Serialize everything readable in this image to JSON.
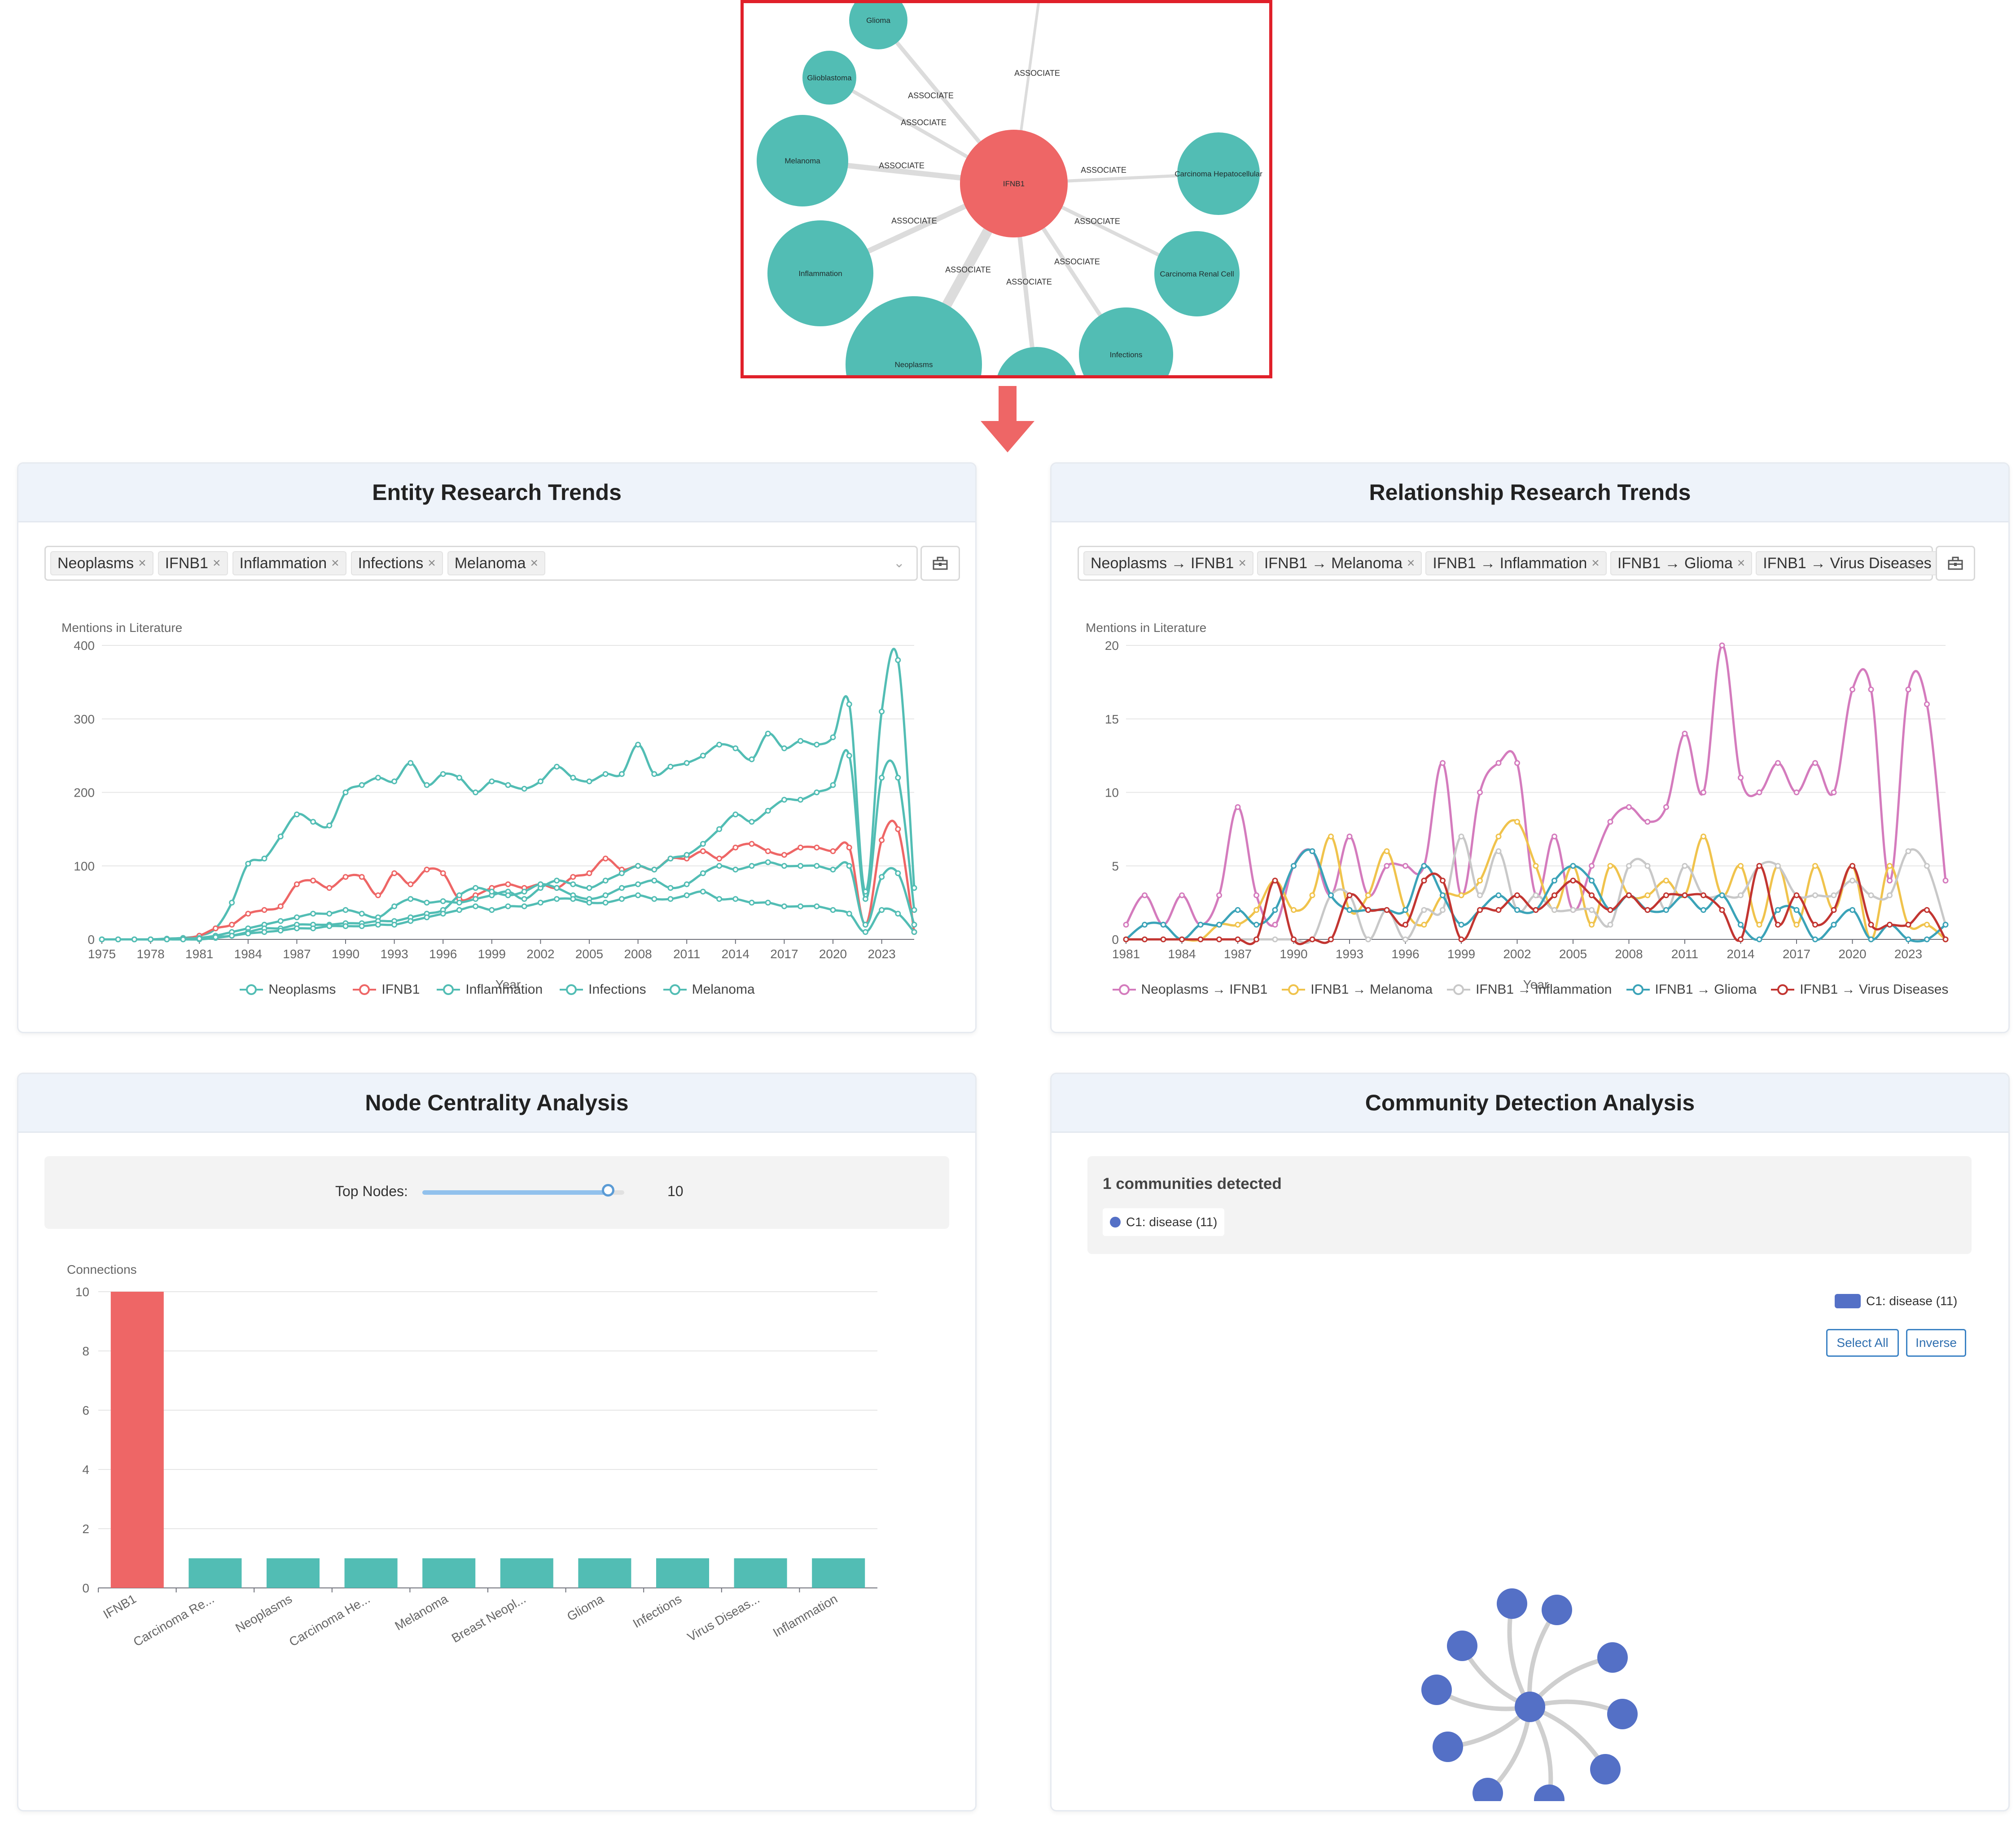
{
  "graph_view": {
    "edge_label": "ASSOCIATE",
    "nodes": [
      {
        "id": "IFNB1",
        "label": "IFNB1",
        "color": "#ee6666",
        "center": true
      },
      {
        "id": "Glioma",
        "label": "Glioma",
        "color": "#52bdb4"
      },
      {
        "id": "Glioblastoma",
        "label": "Glioblastoma",
        "color": "#52bdb4"
      },
      {
        "id": "Melanoma",
        "label": "Melanoma",
        "color": "#52bdb4"
      },
      {
        "id": "Inflammation",
        "label": "Inflammation",
        "color": "#52bdb4"
      },
      {
        "id": "Neoplasms",
        "label": "Neoplasms",
        "color": "#52bdb4"
      },
      {
        "id": "Unlabeled",
        "label": "",
        "color": "#52bdb4"
      },
      {
        "id": "Infections",
        "label": "Infections",
        "color": "#52bdb4"
      },
      {
        "id": "CarcinomaRenal",
        "label": "Carcinoma Renal Cell",
        "color": "#52bdb4"
      },
      {
        "id": "CarcinomaHep",
        "label": "Carcinoma Hepatocellular",
        "color": "#52bdb4"
      },
      {
        "id": "Offscreen",
        "label": "",
        "color": "#52bdb4"
      }
    ]
  },
  "entity_trends": {
    "title": "Entity Research Trends",
    "selected_tags": [
      "Neoplasms",
      "IFNB1",
      "Inflammation",
      "Infections",
      "Melanoma"
    ],
    "ylabel": "Mentions in Literature",
    "xlabel": "Year",
    "legend": [
      "Neoplasms",
      "IFNB1",
      "Inflammation",
      "Infections",
      "Melanoma"
    ]
  },
  "relationship_trends": {
    "title": "Relationship Research Trends",
    "selected_tags": [
      "Neoplasms → IFNB1",
      "IFNB1 → Melanoma",
      "IFNB1 → Inflammation",
      "IFNB1 → Glioma",
      "IFNB1 → Virus Diseases"
    ],
    "ylabel": "Mentions in Literature",
    "xlabel": "Year",
    "legend": [
      "Neoplasms → IFNB1",
      "IFNB1 → Melanoma",
      "IFNB1 → Inflammation",
      "IFNB1 → Glioma",
      "IFNB1 → Virus Diseases"
    ]
  },
  "centrality": {
    "title": "Node Centrality Analysis",
    "slider_label": "Top Nodes:",
    "slider_value": "10",
    "slider_fraction": 0.92,
    "ylabel": "Connections"
  },
  "community": {
    "title": "Community Detection Analysis",
    "detected_text": "1 communities detected",
    "badge": "C1: disease (11)",
    "legend_label": "C1: disease (11)",
    "select_all": "Select All",
    "inverse": "Inverse",
    "color": "#5470c6"
  },
  "chart_data": [
    {
      "type": "line",
      "title": "Entity Research Trends",
      "xlabel": "Year",
      "ylabel": "Mentions in Literature",
      "x": [
        1975,
        1976,
        1977,
        1978,
        1979,
        1980,
        1981,
        1982,
        1983,
        1984,
        1985,
        1986,
        1987,
        1988,
        1989,
        1990,
        1991,
        1992,
        1993,
        1994,
        1995,
        1996,
        1997,
        1998,
        1999,
        2000,
        2001,
        2002,
        2003,
        2004,
        2005,
        2006,
        2007,
        2008,
        2009,
        2010,
        2011,
        2012,
        2013,
        2014,
        2015,
        2016,
        2017,
        2018,
        2019,
        2020,
        2021,
        2022,
        2023,
        2024,
        2025
      ],
      "xticks": [
        1975,
        1978,
        1981,
        1984,
        1987,
        1990,
        1993,
        1996,
        1999,
        2002,
        2005,
        2008,
        2011,
        2014,
        2017,
        2020,
        2023
      ],
      "ylim": [
        0,
        400
      ],
      "yticks": [
        0,
        100,
        200,
        300,
        400
      ],
      "series": [
        {
          "name": "Neoplasms",
          "color": "#52bdb4",
          "values": [
            0,
            0,
            0,
            0,
            1,
            2,
            5,
            15,
            50,
            103,
            110,
            140,
            170,
            160,
            155,
            200,
            210,
            220,
            215,
            240,
            210,
            225,
            220,
            200,
            215,
            210,
            205,
            215,
            235,
            220,
            215,
            225,
            225,
            265,
            225,
            235,
            240,
            250,
            265,
            260,
            245,
            280,
            260,
            270,
            265,
            275,
            320,
            65,
            310,
            380,
            70
          ]
        },
        {
          "name": "IFNB1",
          "color": "#ee6666",
          "values": [
            0,
            0,
            0,
            0,
            0,
            1,
            5,
            15,
            20,
            35,
            40,
            45,
            75,
            80,
            70,
            85,
            85,
            60,
            90,
            75,
            95,
            90,
            55,
            60,
            70,
            75,
            70,
            75,
            70,
            85,
            90,
            110,
            95,
            100,
            95,
            110,
            110,
            120,
            110,
            125,
            130,
            120,
            115,
            125,
            125,
            120,
            125,
            20,
            135,
            150,
            10
          ]
        },
        {
          "name": "Inflammation",
          "color": "#52bdb4",
          "values": [
            0,
            0,
            0,
            0,
            0,
            1,
            2,
            5,
            10,
            15,
            20,
            25,
            30,
            35,
            35,
            40,
            35,
            30,
            45,
            55,
            50,
            52,
            50,
            55,
            60,
            65,
            55,
            70,
            80,
            75,
            70,
            80,
            90,
            100,
            95,
            110,
            115,
            130,
            150,
            170,
            160,
            175,
            190,
            190,
            200,
            210,
            250,
            55,
            220,
            220,
            40
          ]
        },
        {
          "name": "Infections",
          "color": "#52bdb4",
          "values": [
            0,
            0,
            0,
            0,
            0,
            0,
            0,
            2,
            5,
            10,
            15,
            15,
            20,
            20,
            20,
            22,
            22,
            25,
            25,
            30,
            35,
            40,
            60,
            70,
            65,
            60,
            65,
            75,
            70,
            60,
            55,
            60,
            70,
            75,
            80,
            70,
            75,
            90,
            100,
            95,
            100,
            105,
            100,
            100,
            100,
            95,
            100,
            20,
            85,
            90,
            20
          ]
        },
        {
          "name": "Melanoma",
          "color": "#52bdb4",
          "values": [
            0,
            0,
            0,
            0,
            0,
            0,
            1,
            3,
            5,
            8,
            10,
            12,
            15,
            15,
            18,
            18,
            18,
            20,
            20,
            25,
            30,
            35,
            40,
            45,
            40,
            45,
            45,
            50,
            55,
            55,
            50,
            50,
            55,
            60,
            55,
            55,
            60,
            65,
            55,
            55,
            50,
            50,
            45,
            45,
            45,
            40,
            35,
            10,
            40,
            35,
            10
          ]
        }
      ]
    },
    {
      "type": "line",
      "title": "Relationship Research Trends",
      "xlabel": "Year",
      "ylabel": "Mentions in Literature",
      "x": [
        1981,
        1982,
        1983,
        1984,
        1985,
        1986,
        1987,
        1988,
        1989,
        1990,
        1991,
        1992,
        1993,
        1994,
        1995,
        1996,
        1997,
        1998,
        1999,
        2000,
        2001,
        2002,
        2003,
        2004,
        2005,
        2006,
        2007,
        2008,
        2009,
        2010,
        2011,
        2012,
        2013,
        2014,
        2015,
        2016,
        2017,
        2018,
        2019,
        2020,
        2021,
        2022,
        2023,
        2024,
        2025
      ],
      "xticks": [
        1981,
        1984,
        1987,
        1990,
        1993,
        1996,
        1999,
        2002,
        2005,
        2008,
        2011,
        2014,
        2017,
        2020,
        2023
      ],
      "ylim": [
        0,
        20
      ],
      "yticks": [
        0,
        5,
        10,
        15,
        20
      ],
      "series": [
        {
          "name": "Neoplasms → IFNB1",
          "color": "#d47bbd",
          "values": [
            1,
            3,
            1,
            3,
            1,
            3,
            9,
            3,
            1,
            5,
            6,
            3,
            7,
            3,
            5,
            5,
            5,
            12,
            3,
            10,
            12,
            12,
            3,
            7,
            2,
            5,
            8,
            9,
            8,
            9,
            14,
            10,
            20,
            11,
            10,
            12,
            10,
            12,
            10,
            17,
            17,
            4,
            17,
            16,
            4
          ]
        },
        {
          "name": "IFNB1 → Melanoma",
          "color": "#f0c34c",
          "values": [
            0,
            0,
            0,
            0,
            0,
            1,
            1,
            2,
            4,
            2,
            3,
            7,
            2,
            3,
            6,
            2,
            1,
            3,
            3,
            4,
            7,
            8,
            5,
            2,
            5,
            1,
            5,
            3,
            3,
            4,
            3,
            7,
            3,
            5,
            1,
            5,
            1,
            5,
            2,
            5,
            0,
            5,
            1,
            1,
            0
          ]
        },
        {
          "name": "IFNB1 → Inflammation",
          "color": "#c8c8c8",
          "values": [
            0,
            0,
            0,
            0,
            0,
            0,
            0,
            0,
            0,
            0,
            0,
            3,
            3,
            0,
            2,
            0,
            2,
            2,
            7,
            3,
            6,
            2,
            3,
            2,
            2,
            2,
            1,
            5,
            5,
            2,
            5,
            3,
            3,
            3,
            5,
            5,
            3,
            3,
            3,
            4,
            3,
            3,
            6,
            5,
            1
          ]
        },
        {
          "name": "IFNB1 → Glioma",
          "color": "#3ba3b8",
          "values": [
            0,
            1,
            1,
            0,
            1,
            1,
            2,
            1,
            2,
            5,
            6,
            3,
            2,
            2,
            2,
            2,
            5,
            3,
            1,
            2,
            3,
            2,
            2,
            4,
            5,
            4,
            2,
            3,
            2,
            2,
            3,
            2,
            3,
            1,
            0,
            2,
            2,
            0,
            1,
            2,
            0,
            1,
            0,
            0,
            1
          ]
        },
        {
          "name": "IFNB1 → Virus Diseases",
          "color": "#c23531",
          "values": [
            0,
            0,
            0,
            0,
            0,
            0,
            0,
            0,
            4,
            0,
            0,
            0,
            3,
            2,
            2,
            1,
            4,
            4,
            0,
            2,
            2,
            3,
            2,
            3,
            4,
            3,
            2,
            3,
            2,
            3,
            3,
            3,
            2,
            0,
            5,
            1,
            3,
            1,
            2,
            5,
            1,
            1,
            1,
            2,
            0
          ]
        }
      ]
    },
    {
      "type": "bar",
      "title": "",
      "ylabel": "Connections",
      "categories": [
        "IFNB1",
        "Carcinoma Re...",
        "Neoplasms",
        "Carcinoma He...",
        "Melanoma",
        "Breast Neopl...",
        "Glioma",
        "Infections",
        "Virus Diseas...",
        "Inflammation"
      ],
      "values": [
        10,
        1,
        1,
        1,
        1,
        1,
        1,
        1,
        1,
        1
      ],
      "ylim": [
        0,
        10
      ],
      "yticks": [
        0,
        2,
        4,
        6,
        8,
        10
      ],
      "colors": {
        "highlight": "#ee6666",
        "default": "#52bdb4"
      }
    }
  ]
}
